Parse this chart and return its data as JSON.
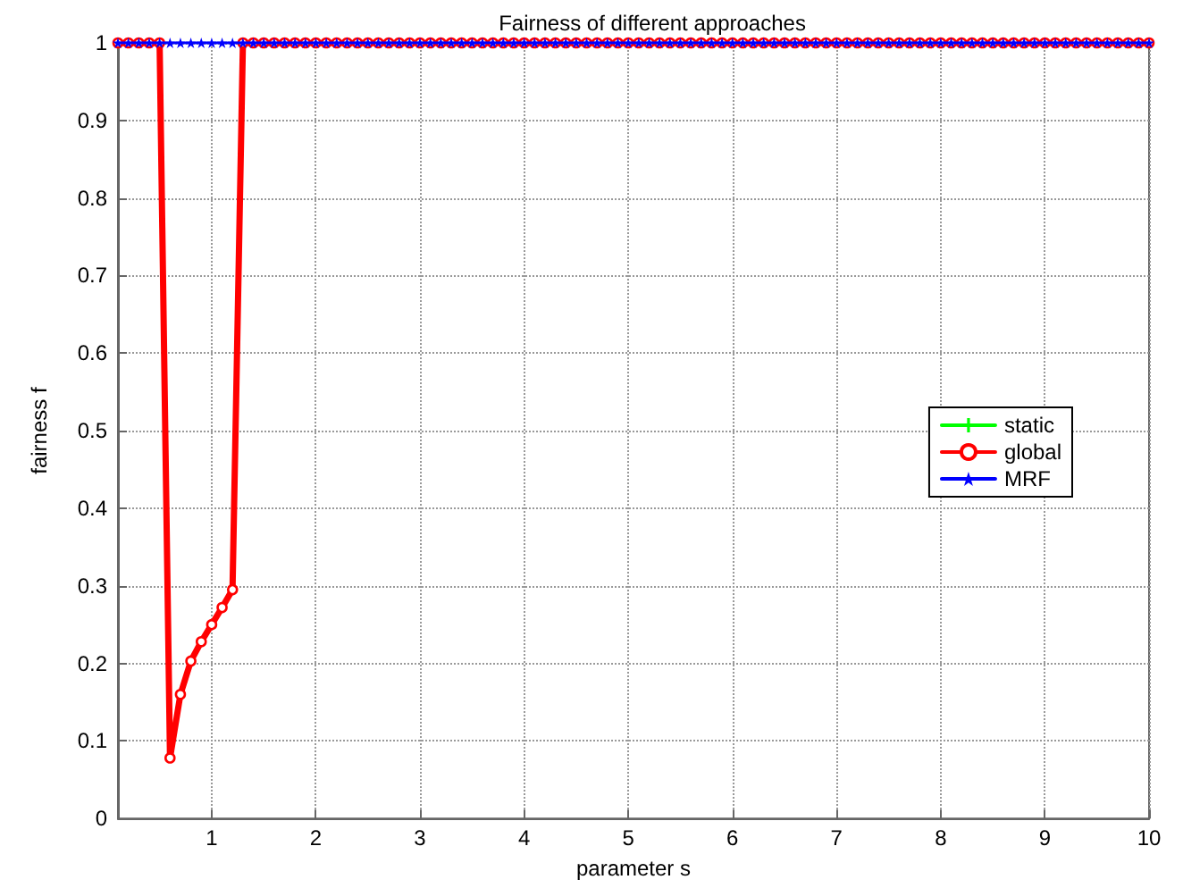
{
  "chart_data": {
    "type": "line",
    "title": "Fairness of different approaches",
    "xlabel": "parameter s",
    "ylabel": "fairness f",
    "x": [
      0.1,
      0.2,
      0.3,
      0.4,
      0.5,
      0.6,
      0.7,
      0.8,
      0.9,
      1.0,
      1.1,
      1.2,
      1.3,
      1.4,
      1.5,
      1.6,
      1.7,
      1.8,
      1.9,
      2.0,
      2.1,
      2.2,
      2.3,
      2.4,
      2.5,
      2.6,
      2.7,
      2.8,
      2.9,
      3.0,
      3.1,
      3.2,
      3.3,
      3.4,
      3.5,
      3.6,
      3.7,
      3.8,
      3.9,
      4.0,
      4.1,
      4.2,
      4.3,
      4.4,
      4.5,
      4.6,
      4.7,
      4.8,
      4.9,
      5.0,
      5.1,
      5.2,
      5.3,
      5.4,
      5.5,
      5.6,
      5.7,
      5.8,
      5.9,
      6.0,
      6.1,
      6.2,
      6.3,
      6.4,
      6.5,
      6.6,
      6.7,
      6.8,
      6.9,
      7.0,
      7.1,
      7.2,
      7.3,
      7.4,
      7.5,
      7.6,
      7.7,
      7.8,
      7.9,
      8.0,
      8.1,
      8.2,
      8.3,
      8.4,
      8.5,
      8.6,
      8.7,
      8.8,
      8.9,
      9.0,
      9.1,
      9.2,
      9.3,
      9.4,
      9.5,
      9.6,
      9.7,
      9.8,
      9.9,
      10.0
    ],
    "series": [
      {
        "name": "static",
        "color": "#00ff00",
        "marker": "cross",
        "values": [
          null,
          null,
          null,
          null,
          null,
          null,
          null,
          null,
          null,
          null,
          null,
          null,
          null,
          null,
          null,
          null,
          null,
          null,
          null,
          null,
          null,
          null,
          null,
          null,
          null,
          null,
          null,
          null,
          null,
          null,
          null,
          null,
          null,
          null,
          null,
          null,
          null,
          null,
          null,
          null,
          null,
          null,
          null,
          null,
          null,
          null,
          null,
          null,
          null,
          null,
          null,
          null,
          null,
          null,
          null,
          null,
          null,
          null,
          null,
          null,
          null,
          null,
          null,
          null,
          null,
          null,
          null,
          null,
          null,
          null,
          null,
          null,
          null,
          null,
          null,
          null,
          null,
          null,
          null,
          null,
          null,
          null,
          null,
          null,
          null,
          null,
          null,
          null,
          null,
          null,
          null,
          null,
          null,
          null,
          null,
          null,
          null,
          null,
          null,
          null
        ]
      },
      {
        "name": "global",
        "color": "#ff0000",
        "marker": "circle",
        "values": [
          1,
          1,
          1,
          1,
          1,
          0.078,
          0.16,
          0.203,
          0.228,
          0.25,
          0.272,
          0.295,
          1,
          1,
          1,
          1,
          1,
          1,
          1,
          1,
          1,
          1,
          1,
          1,
          1,
          1,
          1,
          1,
          1,
          1,
          1,
          1,
          1,
          1,
          1,
          1,
          1,
          1,
          1,
          1,
          1,
          1,
          1,
          1,
          1,
          1,
          1,
          1,
          1,
          1,
          1,
          1,
          1,
          1,
          1,
          1,
          1,
          1,
          1,
          1,
          1,
          1,
          1,
          1,
          1,
          1,
          1,
          1,
          1,
          1,
          1,
          1,
          1,
          1,
          1,
          1,
          1,
          1,
          1,
          1,
          1,
          1,
          1,
          1,
          1,
          1,
          1,
          1,
          1,
          1,
          1,
          1,
          1,
          1,
          1,
          1,
          1,
          1,
          1,
          1
        ]
      },
      {
        "name": "MRF",
        "color": "#0000ff",
        "marker": "star",
        "values": [
          1,
          1,
          1,
          1,
          1,
          1,
          1,
          1,
          1,
          1,
          1,
          1,
          1,
          1,
          1,
          1,
          1,
          1,
          1,
          1,
          1,
          1,
          1,
          1,
          1,
          1,
          1,
          1,
          1,
          1,
          1,
          1,
          1,
          1,
          1,
          1,
          1,
          1,
          1,
          1,
          1,
          1,
          1,
          1,
          1,
          1,
          1,
          1,
          1,
          1,
          1,
          1,
          1,
          1,
          1,
          1,
          1,
          1,
          1,
          1,
          1,
          1,
          1,
          1,
          1,
          1,
          1,
          1,
          1,
          1,
          1,
          1,
          1,
          1,
          1,
          1,
          1,
          1,
          1,
          1,
          1,
          1,
          1,
          1,
          1,
          1,
          1,
          1,
          1,
          1,
          1,
          1,
          1,
          1,
          1,
          1,
          1,
          1,
          1,
          1
        ]
      }
    ],
    "xlim": [
      0.1,
      10
    ],
    "xticks": [
      1,
      2,
      3,
      4,
      5,
      6,
      7,
      8,
      9,
      10
    ],
    "ylim": [
      0,
      1
    ],
    "yticks": [
      0,
      0.1,
      0.2,
      0.3,
      0.4,
      0.5,
      0.6,
      0.7,
      0.8,
      0.9,
      1
    ],
    "grid": true,
    "legend": "right",
    "line_style": "solid"
  }
}
